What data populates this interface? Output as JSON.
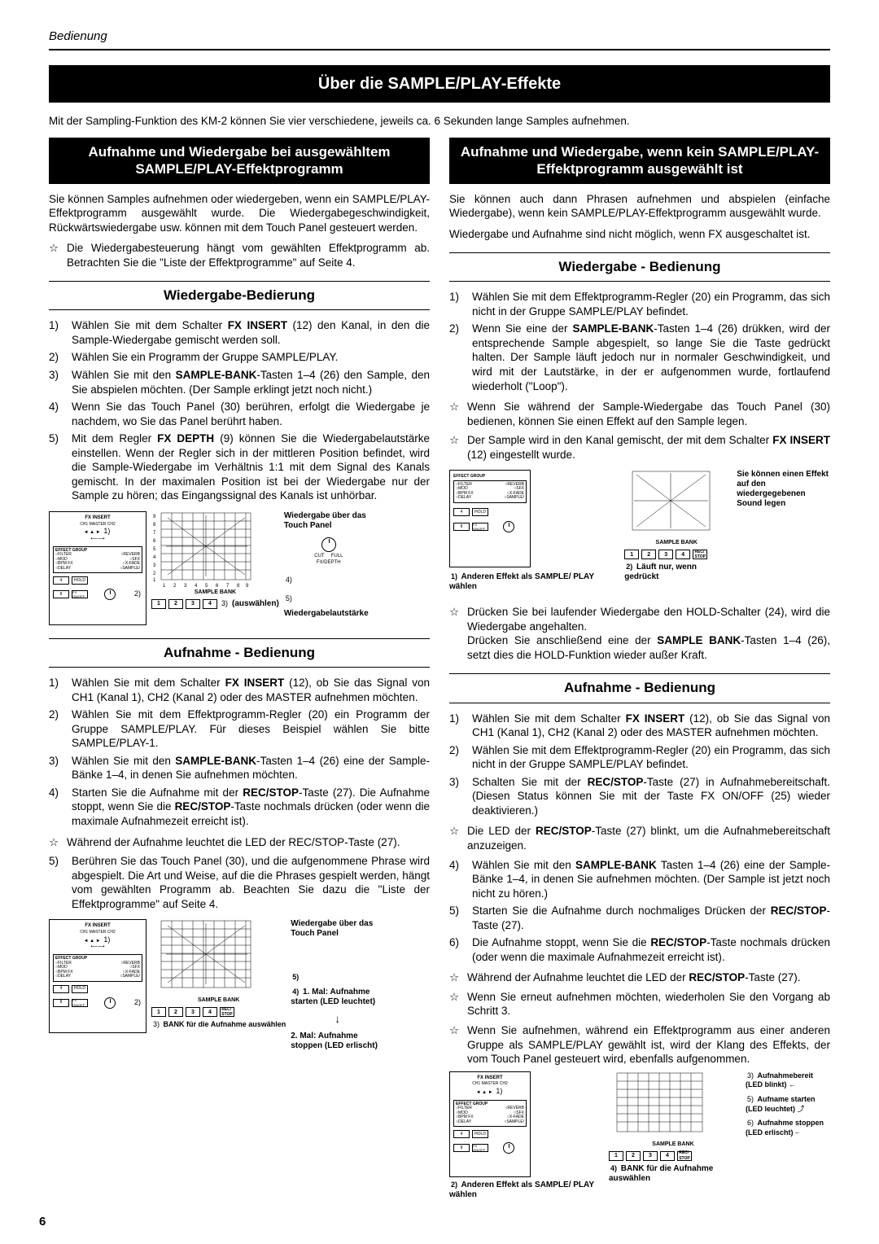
{
  "header": "Bedienung",
  "mainTitle": "Über die SAMPLE/PLAY-Effekte",
  "intro": "Mit der Sampling-Funktion des KM-2 können Sie vier verschiedene, jeweils ca. 6 Sekunden lange Samples aufnehmen.",
  "left": {
    "blackHead": "Aufnahme und Wiedergabe bei ausgewähltem SAMPLE/PLAY-Effektprogramm",
    "para1": "Sie können Samples aufnehmen oder wiedergeben, wenn ein SAMPLE/PLAY-Effektprogramm ausgewählt wurde. Die Wiedergabegeschwindigkeit, Rückwärtswiedergabe usw. können mit dem Touch Panel gesteuert werden.",
    "star1": "Die Wiedergabesteuerung hängt vom gewählten Effektprogramm ab. Betrachten Sie die \"Liste der Effektprogramme\" auf Seite 4.",
    "sec1Title": "Wiedergabe-Bedierung",
    "playbackList": [
      "Wählen Sie mit dem Schalter <b>FX INSERT</b> (12) den Kanal, in den die Sample-Wiedergabe gemischt werden soll.",
      "Wählen Sie ein Programm der Gruppe SAMPLE/PLAY.",
      "Wählen Sie mit den <b>SAMPLE-BANK</b>-Tasten 1–4 (26) den Sample, den Sie abspielen möchten. (Der Sample erklingt jetzt noch nicht.)",
      "Wenn Sie das Touch Panel (30) berühren, erfolgt die Wiedergabe je nachdem, wo Sie das Panel berührt haben.",
      "Mit dem Regler <b>FX DEPTH</b> (9) können Sie die Wiedergabelautstärke einstellen. Wenn der Regler sich in der mittleren Position befindet, wird die Sample-Wiedergabe im Verhältnis 1:1 mit dem Signal des Kanals gemischt. In der maximalen Position ist bei der Wiedergabe nur der Sample zu hören; das Eingangssignal des Kanals ist unhörbar."
    ],
    "diag1": {
      "a1": "Wiedergabe über das Touch Panel",
      "a5": "Wiedergabelautstärke",
      "a3": "(auswählen)",
      "sbTitle": "SAMPLE BANK"
    },
    "sec2Title": "Aufnahme - Bedienung",
    "recList": [
      "Wählen Sie mit dem Schalter <b>FX INSERT</b> (12), ob Sie das Signal von CH1 (Kanal 1), CH2 (Kanal 2) oder des MASTER aufnehmen möchten.",
      "Wählen Sie mit dem Effektprogramm-Regler (20) ein Programm der Gruppe SAMPLE/PLAY. Für dieses Beispiel wählen Sie bitte SAMPLE/PLAY-1.",
      "Wählen Sie mit den <b>SAMPLE-BANK</b>-Tasten 1–4 (26) eine der Sample-Bänke 1–4, in denen Sie aufnehmen möchten.",
      "Starten Sie die Aufnahme mit der <b>REC/STOP</b>-Taste (27). Die Aufnahme stoppt, wenn Sie die <b>REC/STOP</b>-Taste nochmals drücken (oder wenn die maximale Aufnahmezeit erreicht ist)."
    ],
    "recStar": "Während der Aufnahme leuchtet die LED der REC/STOP-Taste (27).",
    "rec5": "Berühren Sie das Touch Panel (30), und die aufgenommene Phrase wird abgespielt. Die Art und Weise, auf die die Phrases gespielt werden, hängt vom gewählten Programm ab. Beachten Sie dazu die \"Liste der Effektprogramme\" auf Seite 4.",
    "diag2": {
      "a1": "Wiedergabe über das Touch Panel",
      "a3": "BANK für die Aufnahme auswählen",
      "a4a": "1. Mal: Aufnahme starten (LED leuchtet)",
      "a4b": "2. Mal: Aufnahme stoppen (LED erlischt)"
    }
  },
  "right": {
    "blackHead": "Aufnahme und Wiedergabe, wenn kein SAMPLE/PLAY-Effektprogramm ausgewählt ist",
    "para1": "Sie können auch dann Phrasen aufnehmen und abspielen (einfache Wiedergabe), wenn kein SAMPLE/PLAY-Effektprogramm ausgewählt wurde.",
    "para2": "Wiedergabe und Aufnahme sind nicht möglich, wenn FX ausgeschaltet ist.",
    "sec1Title": "Wiedergabe - Bedienung",
    "playbackList": [
      "Wählen Sie mit dem Effektprogramm-Regler (20) ein Programm, das sich nicht in der Gruppe SAMPLE/PLAY befindet.",
      "Wenn Sie eine der <b>SAMPLE-BANK</b>-Tasten 1–4 (26) drükken, wird der entsprechende Sample abgespielt, so lange Sie die Taste gedrückt halten. Der Sample läuft jedoch nur in normaler Geschwindigkeit, und wird mit der Lautstärke, in der er aufgenommen wurde, fortlaufend wiederholt (\"Loop\")."
    ],
    "star1": "Wenn Sie während der Sample-Wiedergabe das Touch Panel (30) bedienen, können Sie einen Effekt auf den Sample legen.",
    "star2": "Der Sample wird in den Kanal gemischt, der mit dem Schalter <b>FX INSERT</b> (12) eingestellt wurde.",
    "diag1": {
      "side": "Sie können einen Effekt auf den wiedergegebenen Sound legen",
      "a1": "Anderen Effekt als SAMPLE/ PLAY wählen",
      "a2": "Läuft nur, wenn gedrückt",
      "sbTitle": "SAMPLE BANK"
    },
    "star3": "Drücken Sie bei laufender Wiedergabe den HOLD-Schalter (24), wird die Wiedergabe angehalten.\nDrücken Sie anschließend eine der <b>SAMPLE BANK</b>-Tasten 1–4 (26), setzt dies die HOLD-Funktion wieder außer Kraft.",
    "sec2Title": "Aufnahme - Bedienung",
    "recList": [
      "Wählen Sie mit dem Schalter <b>FX INSERT</b> (12), ob Sie das Signal von CH1 (Kanal 1), CH2 (Kanal 2) oder des MASTER aufnehmen möchten.",
      "Wählen Sie mit dem Effektprogramm-Regler (20) ein Programm, das sich nicht in der Gruppe SAMPLE/PLAY befindet.",
      "Schalten Sie mit der <b>REC/STOP</b>-Taste (27) in Aufnahmebereitschaft. (Diesen Status können Sie mit der Taste FX ON/OFF (25) wieder deaktivieren.)"
    ],
    "recStar1": "Die LED der <b>REC/STOP</b>-Taste (27) blinkt, um die Aufnahmebereitschaft anzuzeigen.",
    "rec4": "Wählen Sie mit den <b>SAMPLE-BANK</b> Tasten 1–4 (26) eine der Sample-Bänke 1–4, in denen Sie aufnehmen möchten. (Der Sample ist jetzt noch nicht zu hören.)",
    "rec5": "Starten Sie die Aufnahme durch nochmaliges Drücken der <b>REC/STOP</b>-Taste (27).",
    "rec6": "Die Aufnahme stoppt, wenn Sie die <b>REC/STOP</b>-Taste nochmals drücken (oder wenn die maximale Aufnahmezeit erreicht ist).",
    "recStar2": "Während der Aufnahme leuchtet die LED der <b>REC/STOP</b>-Taste (27).",
    "recStar3": "Wenn Sie erneut aufnehmen möchten, wiederholen Sie den Vorgang ab Schritt 3.",
    "recStar4": "Wenn Sie aufnehmen, während ein Effektprogramm aus einer anderen Gruppe als SAMPLE/PLAY gewählt ist, wird der Klang des Effekts, der vom Touch Panel gesteuert wird, ebenfalls aufgenommen.",
    "diag2": {
      "a2": "Anderen Effekt als SAMPLE/ PLAY wählen",
      "a4": "BANK für die Aufnahme auswählen",
      "a3": "Aufnahmebereit (LED blinkt)",
      "a5": "Aufname starten (LED leuchtet)",
      "a6": "Aufnahme stoppen (LED erlischt)"
    }
  },
  "pageNum": "6",
  "panel": {
    "fxInsert": "FX INSERT",
    "ch1": "CH1 MASTER CH2",
    "effGroup": "EFFECT GROUP",
    "g": [
      "FILTER",
      "REVERB",
      "MOD",
      "SFX",
      "BPM FX",
      "X-FADE",
      "DELAY",
      "SAMPLE/PLAY"
    ],
    "hold": "HOLD",
    "fx": "FX ON/OFF",
    "four": "4",
    "eight": "8"
  }
}
